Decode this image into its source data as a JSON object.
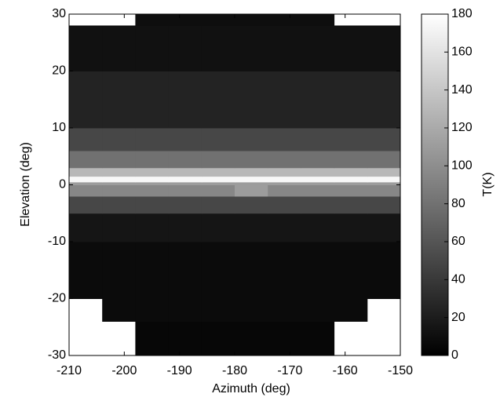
{
  "chart_data": {
    "type": "heatmap",
    "xlabel": "Azimuth (deg)",
    "ylabel": "Elevation (deg)",
    "colorbar_label": "T(K)",
    "xbins": [
      -210,
      -204,
      -198,
      -192,
      -186,
      -180,
      -174,
      -168,
      -162,
      -156,
      -150
    ],
    "ybins": [
      -30,
      -24,
      -20,
      -10,
      -5,
      -2,
      0,
      0.5,
      1.5,
      3,
      6,
      10,
      20,
      28,
      30
    ],
    "values": [
      [
        null,
        null,
        5,
        5,
        5,
        5,
        5,
        5,
        null,
        null
      ],
      [
        null,
        8,
        8,
        8,
        8,
        8,
        8,
        8,
        8,
        null
      ],
      [
        8,
        8,
        8,
        8,
        8,
        8,
        8,
        8,
        8,
        8
      ],
      [
        15,
        15,
        15,
        15,
        15,
        15,
        15,
        15,
        15,
        15
      ],
      [
        50,
        50,
        50,
        50,
        50,
        50,
        50,
        50,
        50,
        50
      ],
      [
        95,
        95,
        95,
        95,
        95,
        110,
        95,
        95,
        95,
        95
      ],
      [
        110,
        110,
        110,
        110,
        110,
        110,
        110,
        110,
        110,
        110
      ],
      [
        175,
        175,
        175,
        175,
        175,
        175,
        175,
        175,
        175,
        175
      ],
      [
        130,
        130,
        130,
        130,
        130,
        130,
        130,
        130,
        130,
        130
      ],
      [
        80,
        80,
        80,
        80,
        80,
        80,
        80,
        80,
        80,
        80
      ],
      [
        50,
        50,
        50,
        50,
        50,
        50,
        50,
        50,
        50,
        50
      ],
      [
        25,
        25,
        25,
        25,
        25,
        25,
        25,
        25,
        25,
        25
      ],
      [
        12,
        12,
        12,
        12,
        12,
        12,
        12,
        12,
        12,
        12
      ],
      [
        null,
        null,
        10,
        10,
        10,
        10,
        10,
        10,
        null,
        null
      ]
    ],
    "colormap": "gray",
    "xlim": [
      -210,
      -150
    ],
    "xticks": [
      -210,
      -200,
      -190,
      -180,
      -170,
      -160,
      -150
    ],
    "ylim": [
      -30,
      30
    ],
    "yticks": [
      -30,
      -20,
      -10,
      0,
      10,
      20,
      30
    ],
    "clim": [
      0,
      180
    ],
    "cticks": [
      0,
      20,
      40,
      60,
      80,
      100,
      120,
      140,
      160,
      180
    ]
  }
}
